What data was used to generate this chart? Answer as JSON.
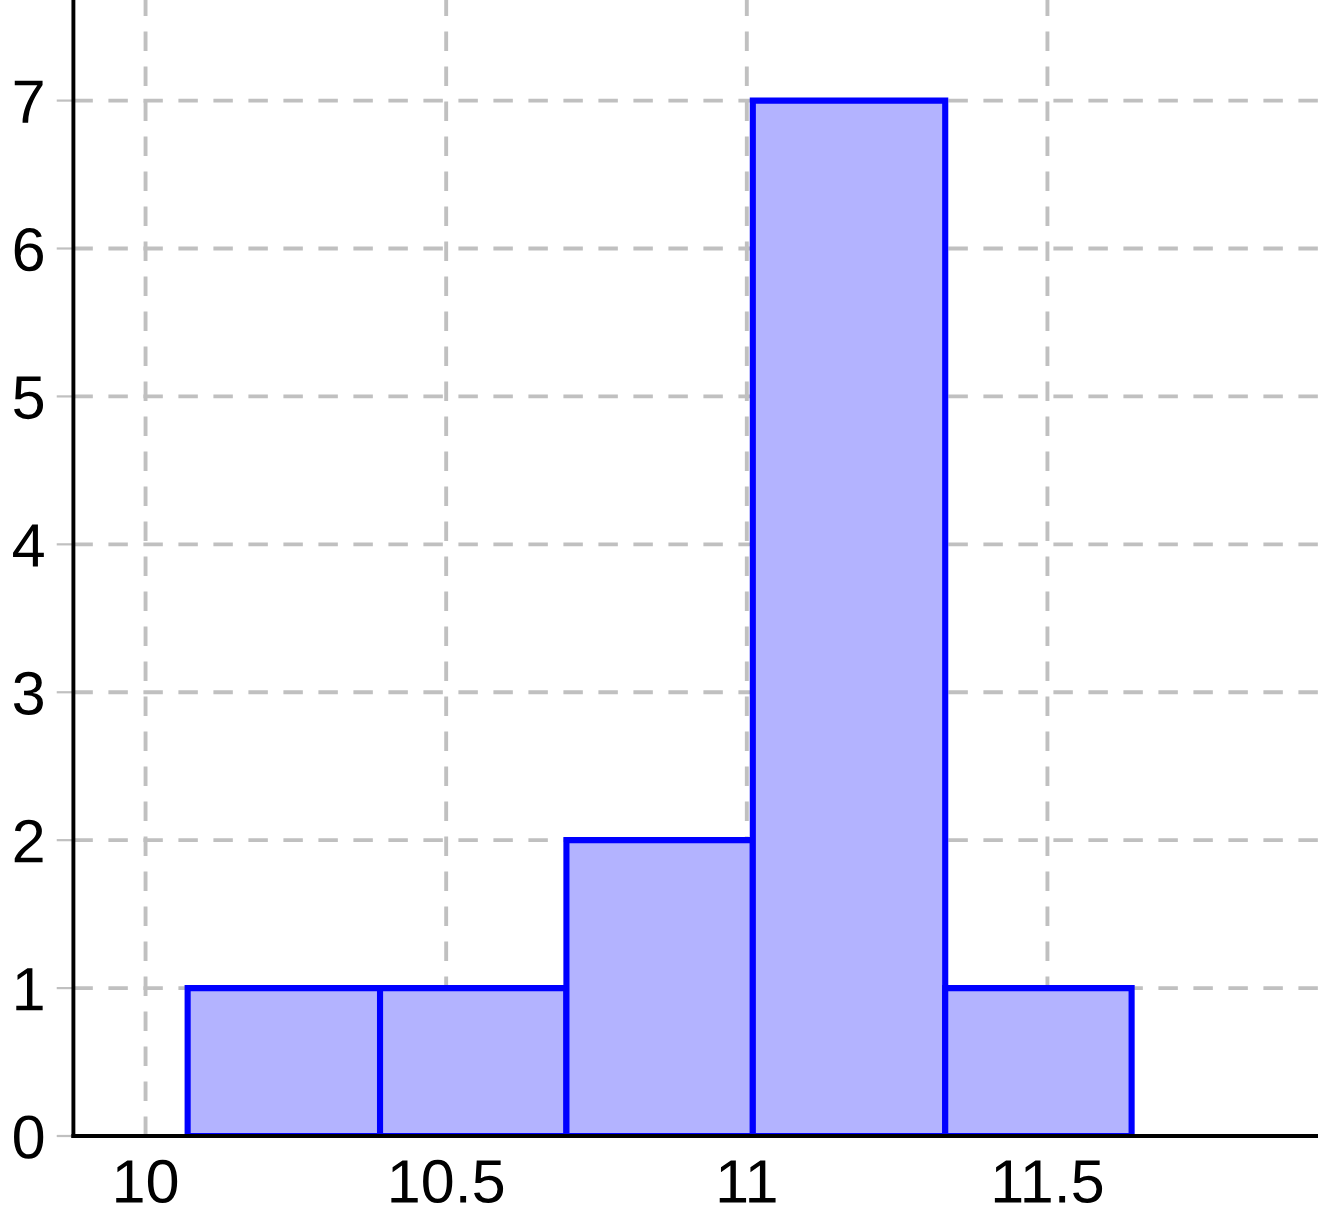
{
  "chart_data": {
    "type": "histogram",
    "bins": [
      10.07,
      10.39,
      10.7,
      11.01,
      11.33,
      11.64
    ],
    "values": [
      1,
      1,
      2,
      7,
      1
    ],
    "color": "#b3b3ff",
    "xlim": [
      9.88,
      11.95
    ],
    "xticks": [
      10,
      10.5,
      11,
      11.5
    ],
    "ylim": [
      0,
      7.68
    ],
    "yticks": [
      0,
      1,
      2,
      3,
      4,
      5,
      6,
      7
    ],
    "grid": true
  }
}
